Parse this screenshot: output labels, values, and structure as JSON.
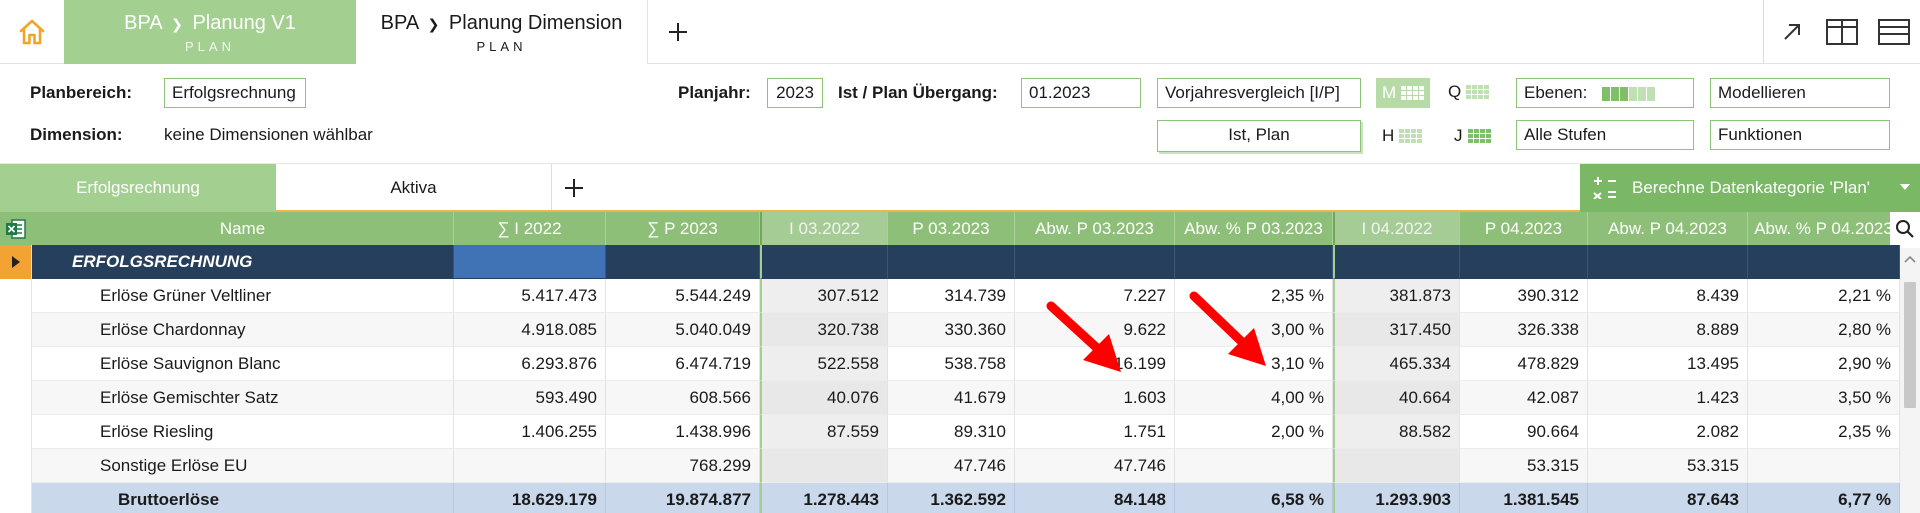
{
  "top_tabs": [
    {
      "title": "BPA",
      "sep": "❯",
      "name": "Planung V1",
      "sub": "PLAN"
    },
    {
      "title": "BPA",
      "sep": "❯",
      "name": "Planung Dimension",
      "sub": "PLAN"
    }
  ],
  "filters": {
    "planbereich_label": "Planbereich:",
    "planbereich_value": "Erfolgsrechnung",
    "dimension_label": "Dimension:",
    "dimension_value": "keine Dimensionen wählbar",
    "planjahr_label": "Planjahr:",
    "planjahr_value": "2023",
    "uebergang_label": "Ist / Plan Übergang:",
    "uebergang_value": "01.2023",
    "vergleich_value": "Vorjahresvergleich [I/P]",
    "kategorie_value": "Ist, Plan",
    "gran_m": "M",
    "gran_q": "Q",
    "gran_h": "H",
    "gran_j": "J",
    "ebenen_value": "Ebenen:",
    "stufen_value": "Alle Stufen",
    "modellieren_value": "Modellieren",
    "funktionen_value": "Funktionen"
  },
  "sheet_tabs": [
    "Erfolgsrechnung",
    "Aktiva"
  ],
  "calc_button": "Berechne Datenkategorie 'Plan'",
  "columns": [
    "Name",
    "∑  I  2022",
    "∑  P  2023",
    "I 03.2022",
    "P 03.2023",
    "Abw. P 03.2023",
    "Abw. % P 03.2023",
    "I 04.2022",
    "P 04.2023",
    "Abw. P 04.2023",
    "Abw. % P 04.2023"
  ],
  "rows": [
    {
      "type": "section",
      "cells": [
        "ERFOLGSRECHNUNG",
        "",
        "",
        "",
        "",
        "",
        "",
        "",
        "",
        "",
        ""
      ]
    },
    {
      "type": "data",
      "cells": [
        "Erlöse Grüner Veltliner",
        "5.417.473",
        "5.544.249",
        "307.512",
        "314.739",
        "7.227",
        "2,35 %",
        "381.873",
        "390.312",
        "8.439",
        "2,21 %"
      ]
    },
    {
      "type": "data",
      "cells": [
        "Erlöse Chardonnay",
        "4.918.085",
        "5.040.049",
        "320.738",
        "330.360",
        "9.622",
        "3,00 %",
        "317.450",
        "326.338",
        "8.889",
        "2,80 %"
      ]
    },
    {
      "type": "data",
      "cells": [
        "Erlöse Sauvignon Blanc",
        "6.293.876",
        "6.474.719",
        "522.558",
        "538.758",
        "16.199",
        "3,10 %",
        "465.334",
        "478.829",
        "13.495",
        "2,90 %"
      ]
    },
    {
      "type": "data",
      "cells": [
        "Erlöse Gemischter Satz",
        "593.490",
        "608.566",
        "40.076",
        "41.679",
        "1.603",
        "4,00 %",
        "40.664",
        "42.087",
        "1.423",
        "3,50 %"
      ]
    },
    {
      "type": "data",
      "cells": [
        "Erlöse Riesling",
        "1.406.255",
        "1.438.996",
        "87.559",
        "89.310",
        "1.751",
        "2,00 %",
        "88.582",
        "90.664",
        "2.082",
        "2,35 %"
      ]
    },
    {
      "type": "data",
      "cells": [
        "Sonstige Erlöse EU",
        "",
        "768.299",
        "",
        "47.746",
        "47.746",
        "",
        "",
        "53.315",
        "53.315",
        ""
      ]
    },
    {
      "type": "total",
      "cells": [
        "Bruttoerlöse",
        "18.629.179",
        "19.874.877",
        "1.278.443",
        "1.362.592",
        "84.148",
        "6,58 %",
        "1.293.903",
        "1.381.545",
        "87.643",
        "6,77 %"
      ]
    }
  ]
}
